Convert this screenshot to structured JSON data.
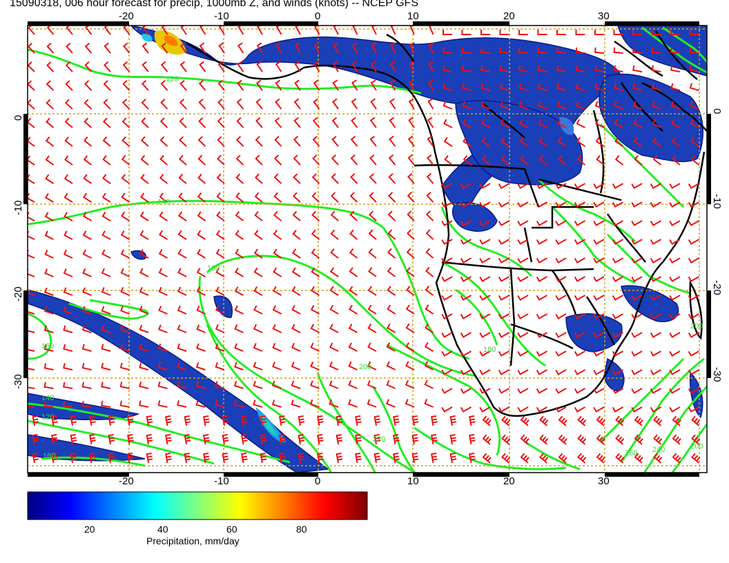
{
  "title": "15090318, 006 hour forecast for precip, 1000mb Z, and winds (knots) -- NCEP GFS",
  "map": {
    "lon_range": [
      -30,
      41
    ],
    "lat_range": [
      -40,
      10
    ],
    "bottom_lon_labels": [
      "-20",
      "-10",
      "0",
      "10",
      "20",
      "30"
    ],
    "top_lon_labels": [
      "-20",
      "-10",
      "0",
      "10",
      "20",
      "30"
    ],
    "left_lat_labels": [
      "0",
      "-10",
      "-20",
      "-30"
    ],
    "right_lat_labels": [
      "0",
      "-10",
      "-20",
      "-30"
    ],
    "contour_labels": [
      "120",
      "140",
      "160",
      "160",
      "180",
      "200",
      "200",
      "220",
      "240",
      "260",
      "140",
      "120",
      "160",
      "200"
    ],
    "colors": {
      "wind_barbs": "#ee1111",
      "height_contours": "#22ee22",
      "precip_low": "#0a1a8a",
      "precip_mid": "#1a55d8",
      "coastline": "#000000",
      "graticule": "#d4a017"
    }
  },
  "colorbar": {
    "label": "Precipitation, mm/day",
    "ticks": [
      "20",
      "40",
      "60",
      "80"
    ],
    "range": [
      0,
      100
    ],
    "colormap": [
      "#00007f",
      "#0000ff",
      "#0080ff",
      "#00ffff",
      "#80ff80",
      "#ffff00",
      "#ff8000",
      "#ff0000",
      "#7f0000"
    ]
  }
}
